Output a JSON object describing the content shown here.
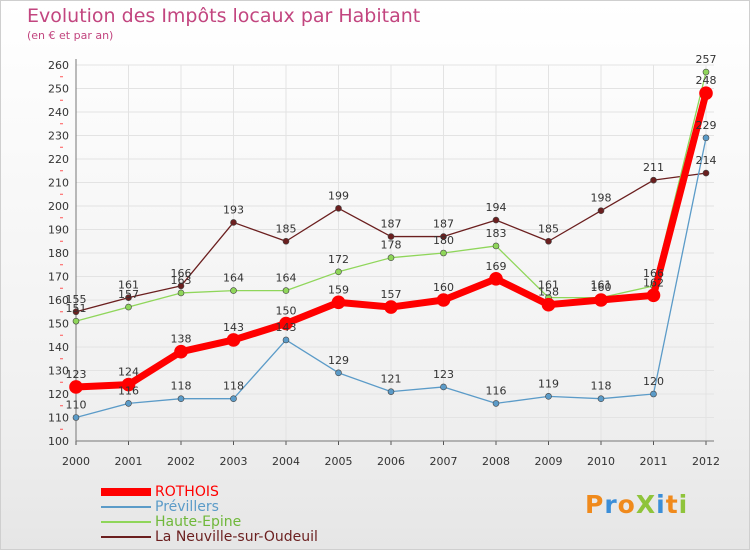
{
  "title": "Evolution des Impôts locaux par Habitant",
  "subtitle": "(en € et par an)",
  "brand": "ProXiti",
  "colors": {
    "title": "#c2457f",
    "rothois": "#ff0000",
    "previllers": "#5b9bc8",
    "haute_epine": "#8fd65a",
    "neuville": "#6b1f1f"
  },
  "chart_data": {
    "type": "line",
    "title": "Evolution des Impôts locaux par Habitant",
    "subtitle": "(en € et par an)",
    "xlabel": "",
    "ylabel": "",
    "ylim": [
      100,
      260
    ],
    "grid": true,
    "legend_position": "bottom-left",
    "x": [
      "2000",
      "2001",
      "2002",
      "2003",
      "2004",
      "2005",
      "2006",
      "2007",
      "2008",
      "2009",
      "2010",
      "2011",
      "2012"
    ],
    "y_ticks": [
      "100",
      "110",
      "120",
      "130",
      "140",
      "150",
      "160",
      "170",
      "180",
      "190",
      "200",
      "210",
      "220",
      "230",
      "240",
      "250",
      "260"
    ],
    "series": [
      {
        "name": "La Neuville-sur-Oudeuil",
        "color": "#6b1f1f",
        "width": 1.3,
        "radius": 3,
        "values": [
          155,
          161,
          166,
          193,
          185,
          199,
          187,
          187,
          194,
          185,
          198,
          211,
          214
        ],
        "labels": [
          "155",
          "161",
          "166",
          "193",
          "185",
          "199",
          "187",
          "187",
          "194",
          "185",
          "198",
          "211",
          "214"
        ]
      },
      {
        "name": "Haute-Epine",
        "color": "#8fd65a",
        "width": 1.3,
        "radius": 3,
        "values": [
          151,
          157,
          163,
          164,
          164,
          172,
          178,
          180,
          183,
          161,
          161,
          166,
          257
        ],
        "labels": [
          "151",
          "157",
          "163",
          "164",
          "164",
          "172",
          "178",
          "180",
          "183",
          "161",
          "161",
          "166",
          "257"
        ]
      },
      {
        "name": "Prévillers",
        "color": "#5b9bc8",
        "width": 1.3,
        "radius": 3,
        "values": [
          110,
          116,
          118,
          118,
          143,
          129,
          121,
          123,
          116,
          119,
          118,
          120,
          229
        ],
        "labels": [
          "110",
          "116",
          "118",
          "118",
          "143",
          "129",
          "121",
          "123",
          "116",
          "119",
          "118",
          "120",
          "229"
        ]
      },
      {
        "name": "ROTHOIS",
        "color": "#ff0000",
        "width": 7,
        "radius": 6.5,
        "values": [
          123,
          124,
          138,
          143,
          150,
          159,
          157,
          160,
          169,
          158,
          160,
          162,
          248
        ],
        "labels": [
          "123",
          "124",
          "138",
          "143",
          "150",
          "159",
          "157",
          "160",
          "169",
          "158",
          "160",
          "162",
          "248"
        ]
      }
    ],
    "legend": [
      "ROTHOIS",
      "Prévillers",
      "Haute-Epine",
      "La Neuville-sur-Oudeuil"
    ]
  }
}
